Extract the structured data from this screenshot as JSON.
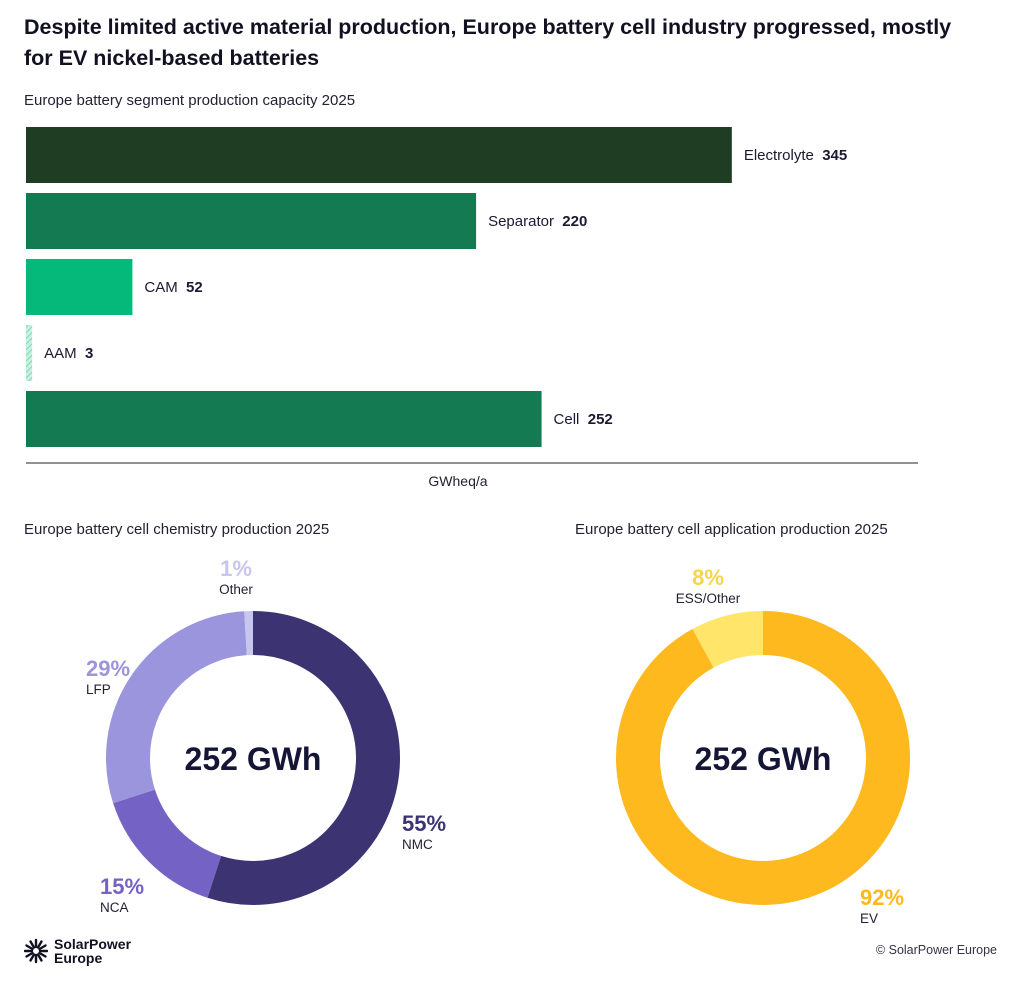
{
  "title": "Despite limited active material production, Europe battery cell industry progressed, mostly for EV nickel-based batteries",
  "chart_data": [
    {
      "type": "bar",
      "orientation": "horizontal",
      "title": "Europe battery segment production capacity 2025",
      "xlabel": "GWheq/a",
      "ylabel": "",
      "xlim": [
        0,
        436
      ],
      "categories": [
        "Electrolyte",
        "Separator",
        "CAM",
        "AAM",
        "Cell"
      ],
      "values": [
        345,
        220,
        52,
        3,
        252
      ],
      "colors": [
        "#1f3d22",
        "#137a51",
        "#05b97a",
        "#a9e8cf",
        "#137a51"
      ]
    },
    {
      "type": "pie",
      "style": "donut",
      "title": "Europe battery cell chemistry production 2025",
      "center_label": "252 GWh",
      "categories": [
        "NMC",
        "NCA",
        "LFP",
        "Other"
      ],
      "values": [
        55,
        15,
        29,
        1
      ],
      "value_labels": [
        "55%",
        "15%",
        "29%",
        "1%"
      ],
      "colors": [
        "#3b3372",
        "#7462c4",
        "#9a95dc",
        "#c7c6ef"
      ]
    },
    {
      "type": "pie",
      "style": "donut",
      "title": "Europe battery cell application production 2025",
      "center_label": "252 GWh",
      "categories": [
        "EV",
        "ESS/Other"
      ],
      "values": [
        92,
        8
      ],
      "value_labels": [
        "92%",
        "8%"
      ],
      "colors": [
        "#fdb91e",
        "#ffe569"
      ]
    }
  ],
  "footer": {
    "logo_line1": "SolarPower",
    "logo_line2": "Europe",
    "copyright": "© SolarPower Europe"
  },
  "icons": {
    "logo": "sun-burst-icon"
  }
}
